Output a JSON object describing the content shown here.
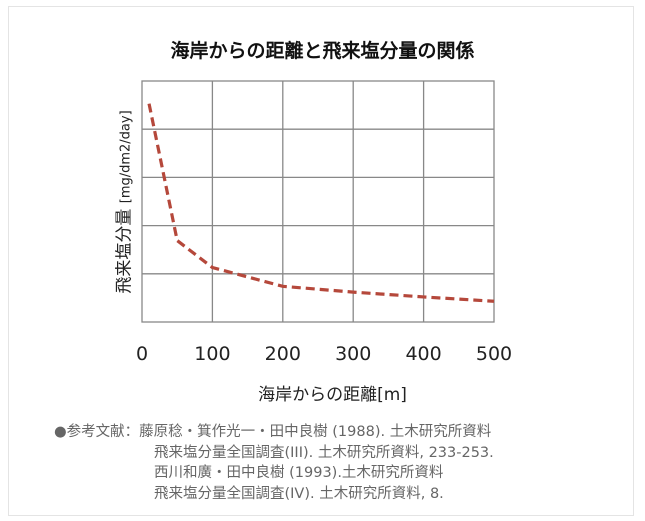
{
  "chart_data": {
    "type": "line",
    "title": "海岸からの距離と飛来塩分量の関係",
    "xlabel": "海岸からの距離[m]",
    "ylabel": "飛来塩分量",
    "ylabel_unit": "[mg/dm2/day]",
    "x_ticks": [
      "0",
      "100",
      "200",
      "300",
      "400",
      "500"
    ],
    "xlim": [
      0,
      500
    ],
    "ylim": [
      0,
      5
    ],
    "y_gridlines": 5,
    "grid": true,
    "series": [
      {
        "name": "飛来塩分量",
        "color": "#b5483b",
        "style": "dashed",
        "x": [
          10,
          50,
          100,
          200,
          300,
          400,
          500
        ],
        "y": [
          4.53,
          1.69,
          1.13,
          0.74,
          0.62,
          0.52,
          0.43
        ]
      }
    ]
  },
  "references": {
    "label": "●参考文献：",
    "lines": [
      "藤原稔・箕作光一・田中良樹 (1988). 土木研究所資料",
      "飛来塩分量全国調査(III). 土木研究所資料, 233-253.",
      "西川和廣・田中良樹 (1993).土木研究所資料",
      "飛来塩分量全国調査(IV). 土木研究所資料, 8."
    ]
  }
}
